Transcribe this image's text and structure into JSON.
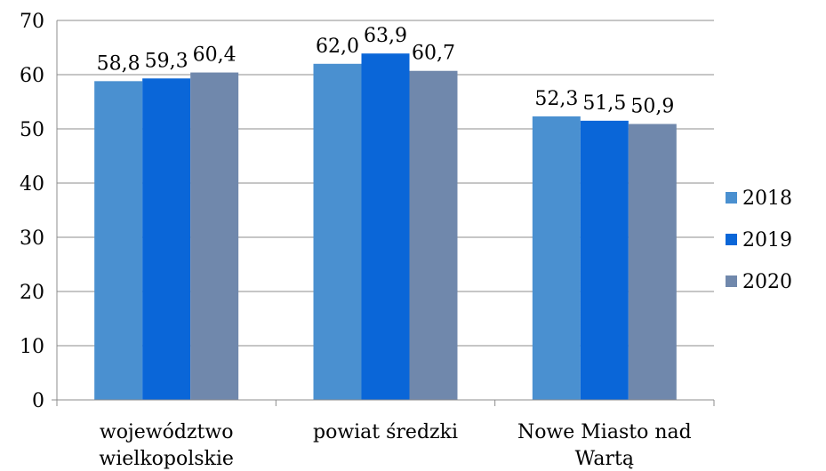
{
  "chart_data": {
    "type": "bar",
    "categories": [
      [
        "województwo",
        "wielkopolskie"
      ],
      [
        "powiat średzki"
      ],
      [
        "Nowe Miasto nad",
        "Wartą"
      ]
    ],
    "series": [
      {
        "name": "2018",
        "values": [
          58.8,
          62.0,
          52.3
        ],
        "labels": [
          "58,8",
          "62,0",
          "52,3"
        ],
        "color": "#4a90d0"
      },
      {
        "name": "2019",
        "values": [
          59.3,
          63.9,
          51.5
        ],
        "labels": [
          "59,3",
          "63,9",
          "51,5"
        ],
        "color": "#0a66d8"
      },
      {
        "name": "2020",
        "values": [
          60.4,
          60.7,
          50.9
        ],
        "labels": [
          "60,4",
          "60,7",
          "50,9"
        ],
        "color": "#7088ac"
      }
    ],
    "yticks": [
      "0",
      "10",
      "20",
      "30",
      "40",
      "50",
      "60",
      "70"
    ],
    "ylim": [
      0,
      70
    ],
    "grid": true,
    "legend": "right"
  }
}
